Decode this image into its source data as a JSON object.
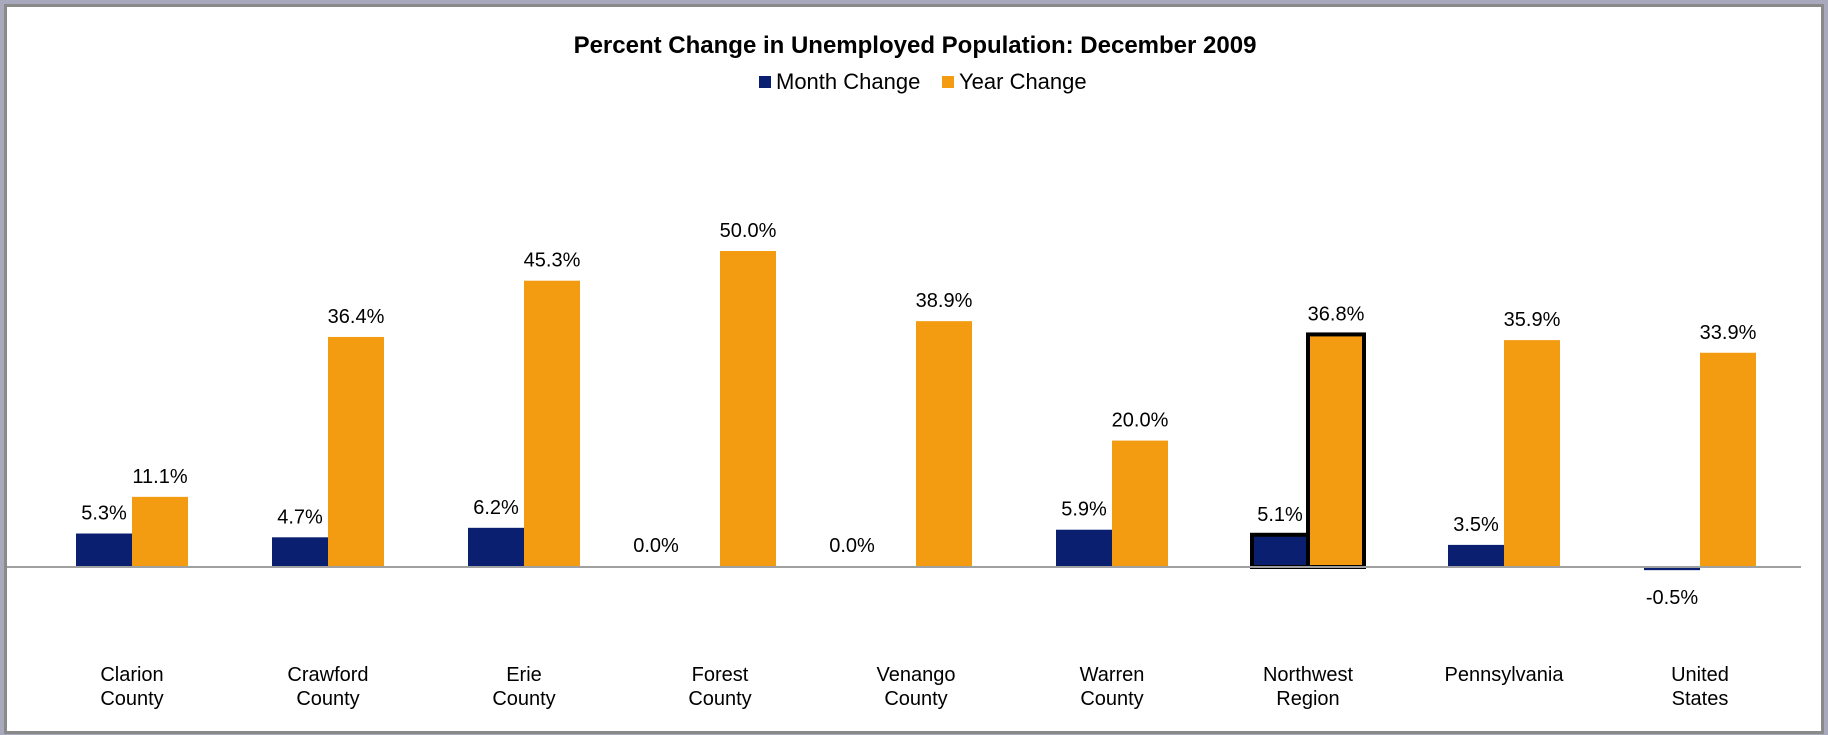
{
  "chart_data": {
    "type": "bar",
    "title": "Percent Change in Unemployed Population:  December 2009",
    "categories": [
      [
        "Clarion",
        "County"
      ],
      [
        "Crawford",
        "County"
      ],
      [
        "Erie",
        "County"
      ],
      [
        "Forest",
        "County"
      ],
      [
        "Venango",
        "County"
      ],
      [
        "Warren",
        "County"
      ],
      [
        "Northwest",
        "Region"
      ],
      [
        "Pennsylvania"
      ],
      [
        "United",
        "States"
      ]
    ],
    "series": [
      {
        "name": "Month Change",
        "color": "#0b1f71",
        "values": [
          5.3,
          4.7,
          6.2,
          0.0,
          0.0,
          5.9,
          5.1,
          3.5,
          -0.5
        ],
        "labels": [
          "5.3%",
          "4.7%",
          "6.2%",
          "0.0%",
          "0.0%",
          "5.9%",
          "5.1%",
          "3.5%",
          "-0.5%"
        ]
      },
      {
        "name": "Year Change",
        "color": "#f39c12",
        "values": [
          11.1,
          36.4,
          45.3,
          50.0,
          38.9,
          20.0,
          36.8,
          35.9,
          33.9
        ],
        "labels": [
          "11.1%",
          "36.4%",
          "45.3%",
          "50.0%",
          "38.9%",
          "20.0%",
          "36.8%",
          "35.9%",
          "33.9%"
        ]
      }
    ],
    "highlighted_category": "Northwest Region",
    "legend_position": "top-center",
    "grid": false
  }
}
